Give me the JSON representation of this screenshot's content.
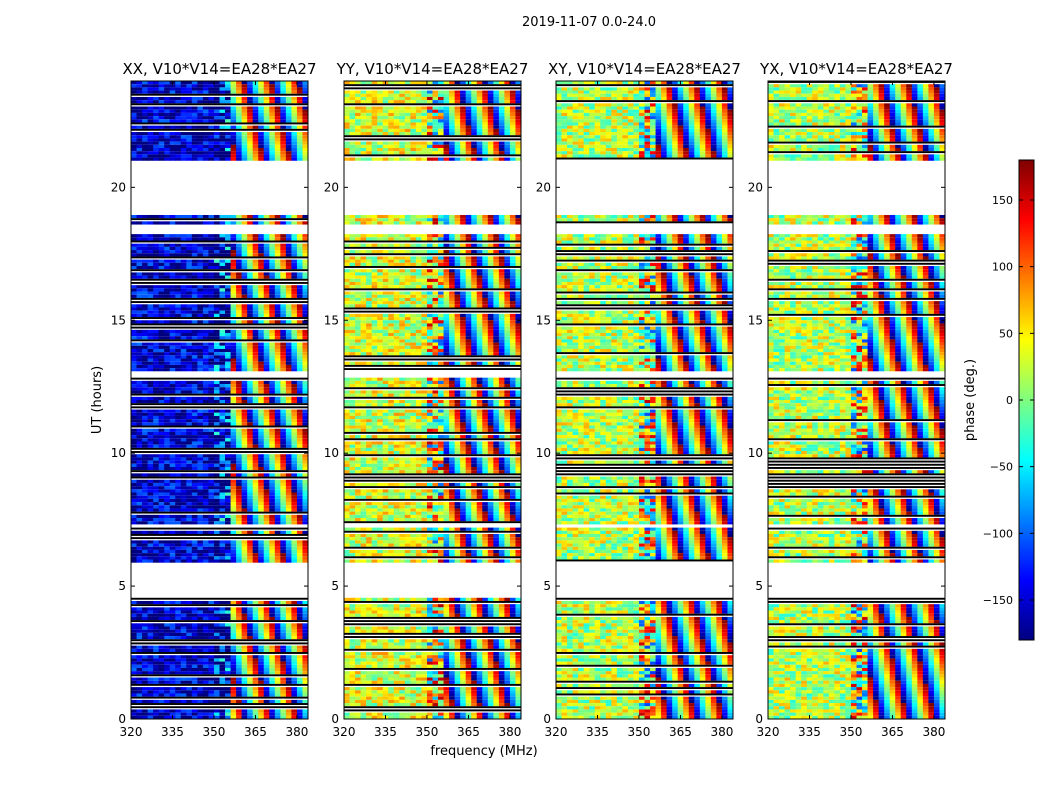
{
  "chart_data": {
    "type": "heatmap",
    "title": "2019-11-07 0.0-24.0",
    "xlabel": "frequency (MHz)",
    "ylabel": "UT (hours)",
    "x_ticks": [
      320,
      335,
      350,
      365,
      380
    ],
    "y_ticks": [
      0,
      5,
      10,
      15,
      20
    ],
    "xlim": [
      320,
      384
    ],
    "ylim": [
      0,
      24
    ],
    "colorbar": {
      "label": "phase (deg.)",
      "range": [
        -180,
        180
      ],
      "ticks": [
        -150,
        -100,
        -50,
        0,
        50,
        100,
        150
      ],
      "tick_labels": [
        "−150",
        "−100",
        "−50",
        "0",
        "50",
        "100",
        "150"
      ],
      "colormap": [
        "#00007f",
        "#0000ff",
        "#007fff",
        "#00ffff",
        "#7fff7f",
        "#ffff00",
        "#ff7f00",
        "#ff0000",
        "#7f0000"
      ]
    },
    "panels": [
      {
        "title": "XX, V10*V14=EA28*EA27",
        "dominant_phase_deg": -150
      },
      {
        "title": "YY, V10*V14=EA28*EA27",
        "dominant_phase_deg": 30
      },
      {
        "title": "XY, V10*V14=EA28*EA27",
        "dominant_phase_deg": 20
      },
      {
        "title": "YX, V10*V14=EA28*EA27",
        "dominant_phase_deg": 20
      }
    ],
    "grid": false
  }
}
